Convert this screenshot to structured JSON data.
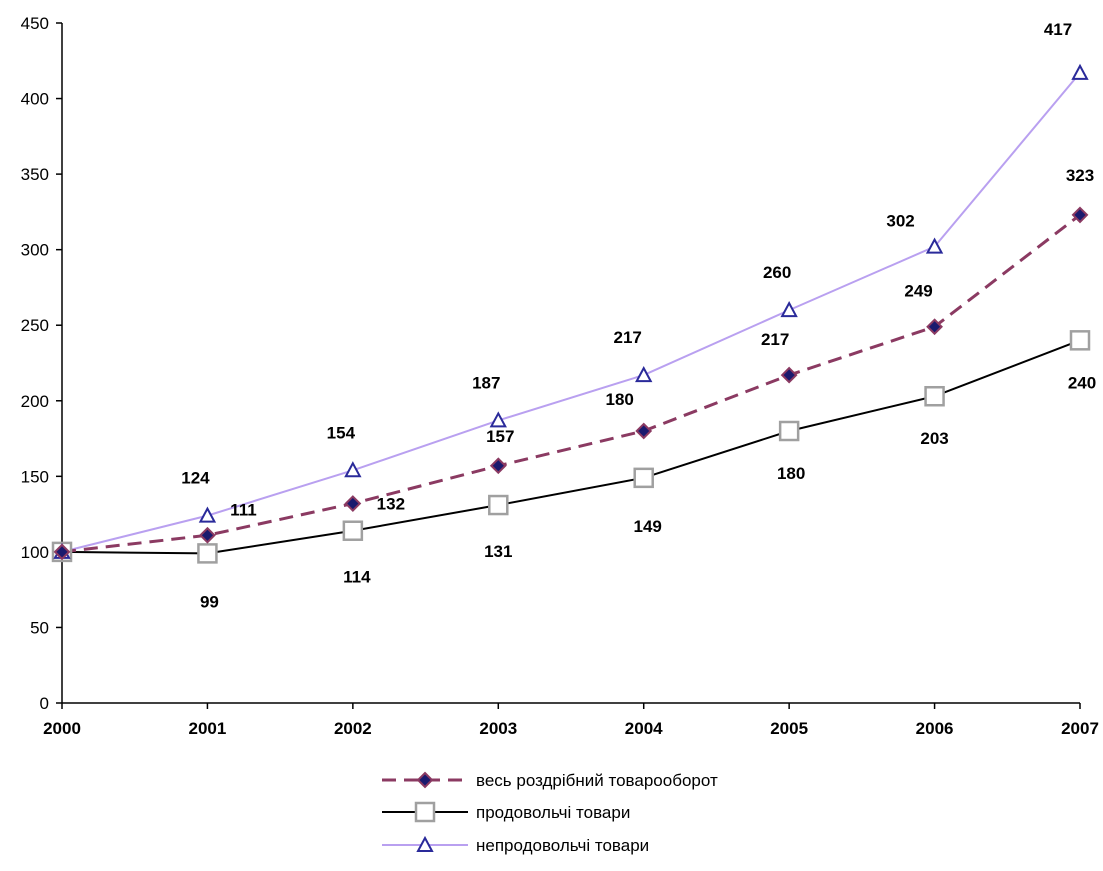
{
  "chart_data": {
    "type": "line",
    "title": "",
    "xlabel": "",
    "ylabel": "",
    "categories": [
      "2000",
      "2001",
      "2002",
      "2003",
      "2004",
      "2005",
      "2006",
      "2007"
    ],
    "ylim": [
      0,
      450
    ],
    "yticks": [
      0,
      50,
      100,
      150,
      200,
      250,
      300,
      350,
      400,
      450
    ],
    "grid": false,
    "legend_position": "bottom",
    "series": [
      {
        "name": "весь роздрібний товарооборот",
        "values": [
          100,
          111,
          132,
          157,
          180,
          217,
          249,
          323
        ],
        "labels": [
          "",
          "111",
          "132",
          "157",
          "180",
          "217",
          "249",
          "323"
        ],
        "color": "#8B3A62",
        "marker_color": "#1a1a6e",
        "line_style": "dashed",
        "marker": "diamond"
      },
      {
        "name": "продовольчі товари",
        "values": [
          100,
          99,
          114,
          131,
          149,
          180,
          203,
          240
        ],
        "labels": [
          "",
          "99",
          "114",
          "131",
          "149",
          "180",
          "203",
          "240"
        ],
        "color": "#000000",
        "marker_color": "#a0a0a0",
        "line_style": "solid",
        "marker": "square"
      },
      {
        "name": "непродовольчі товари",
        "values": [
          100,
          124,
          154,
          187,
          217,
          260,
          302,
          417
        ],
        "labels": [
          "",
          "124",
          "154",
          "187",
          "217",
          "260",
          "302",
          "417"
        ],
        "color": "#b9a0f0",
        "marker_color": "#2a2a9a",
        "line_style": "solid",
        "marker": "triangle"
      }
    ]
  }
}
